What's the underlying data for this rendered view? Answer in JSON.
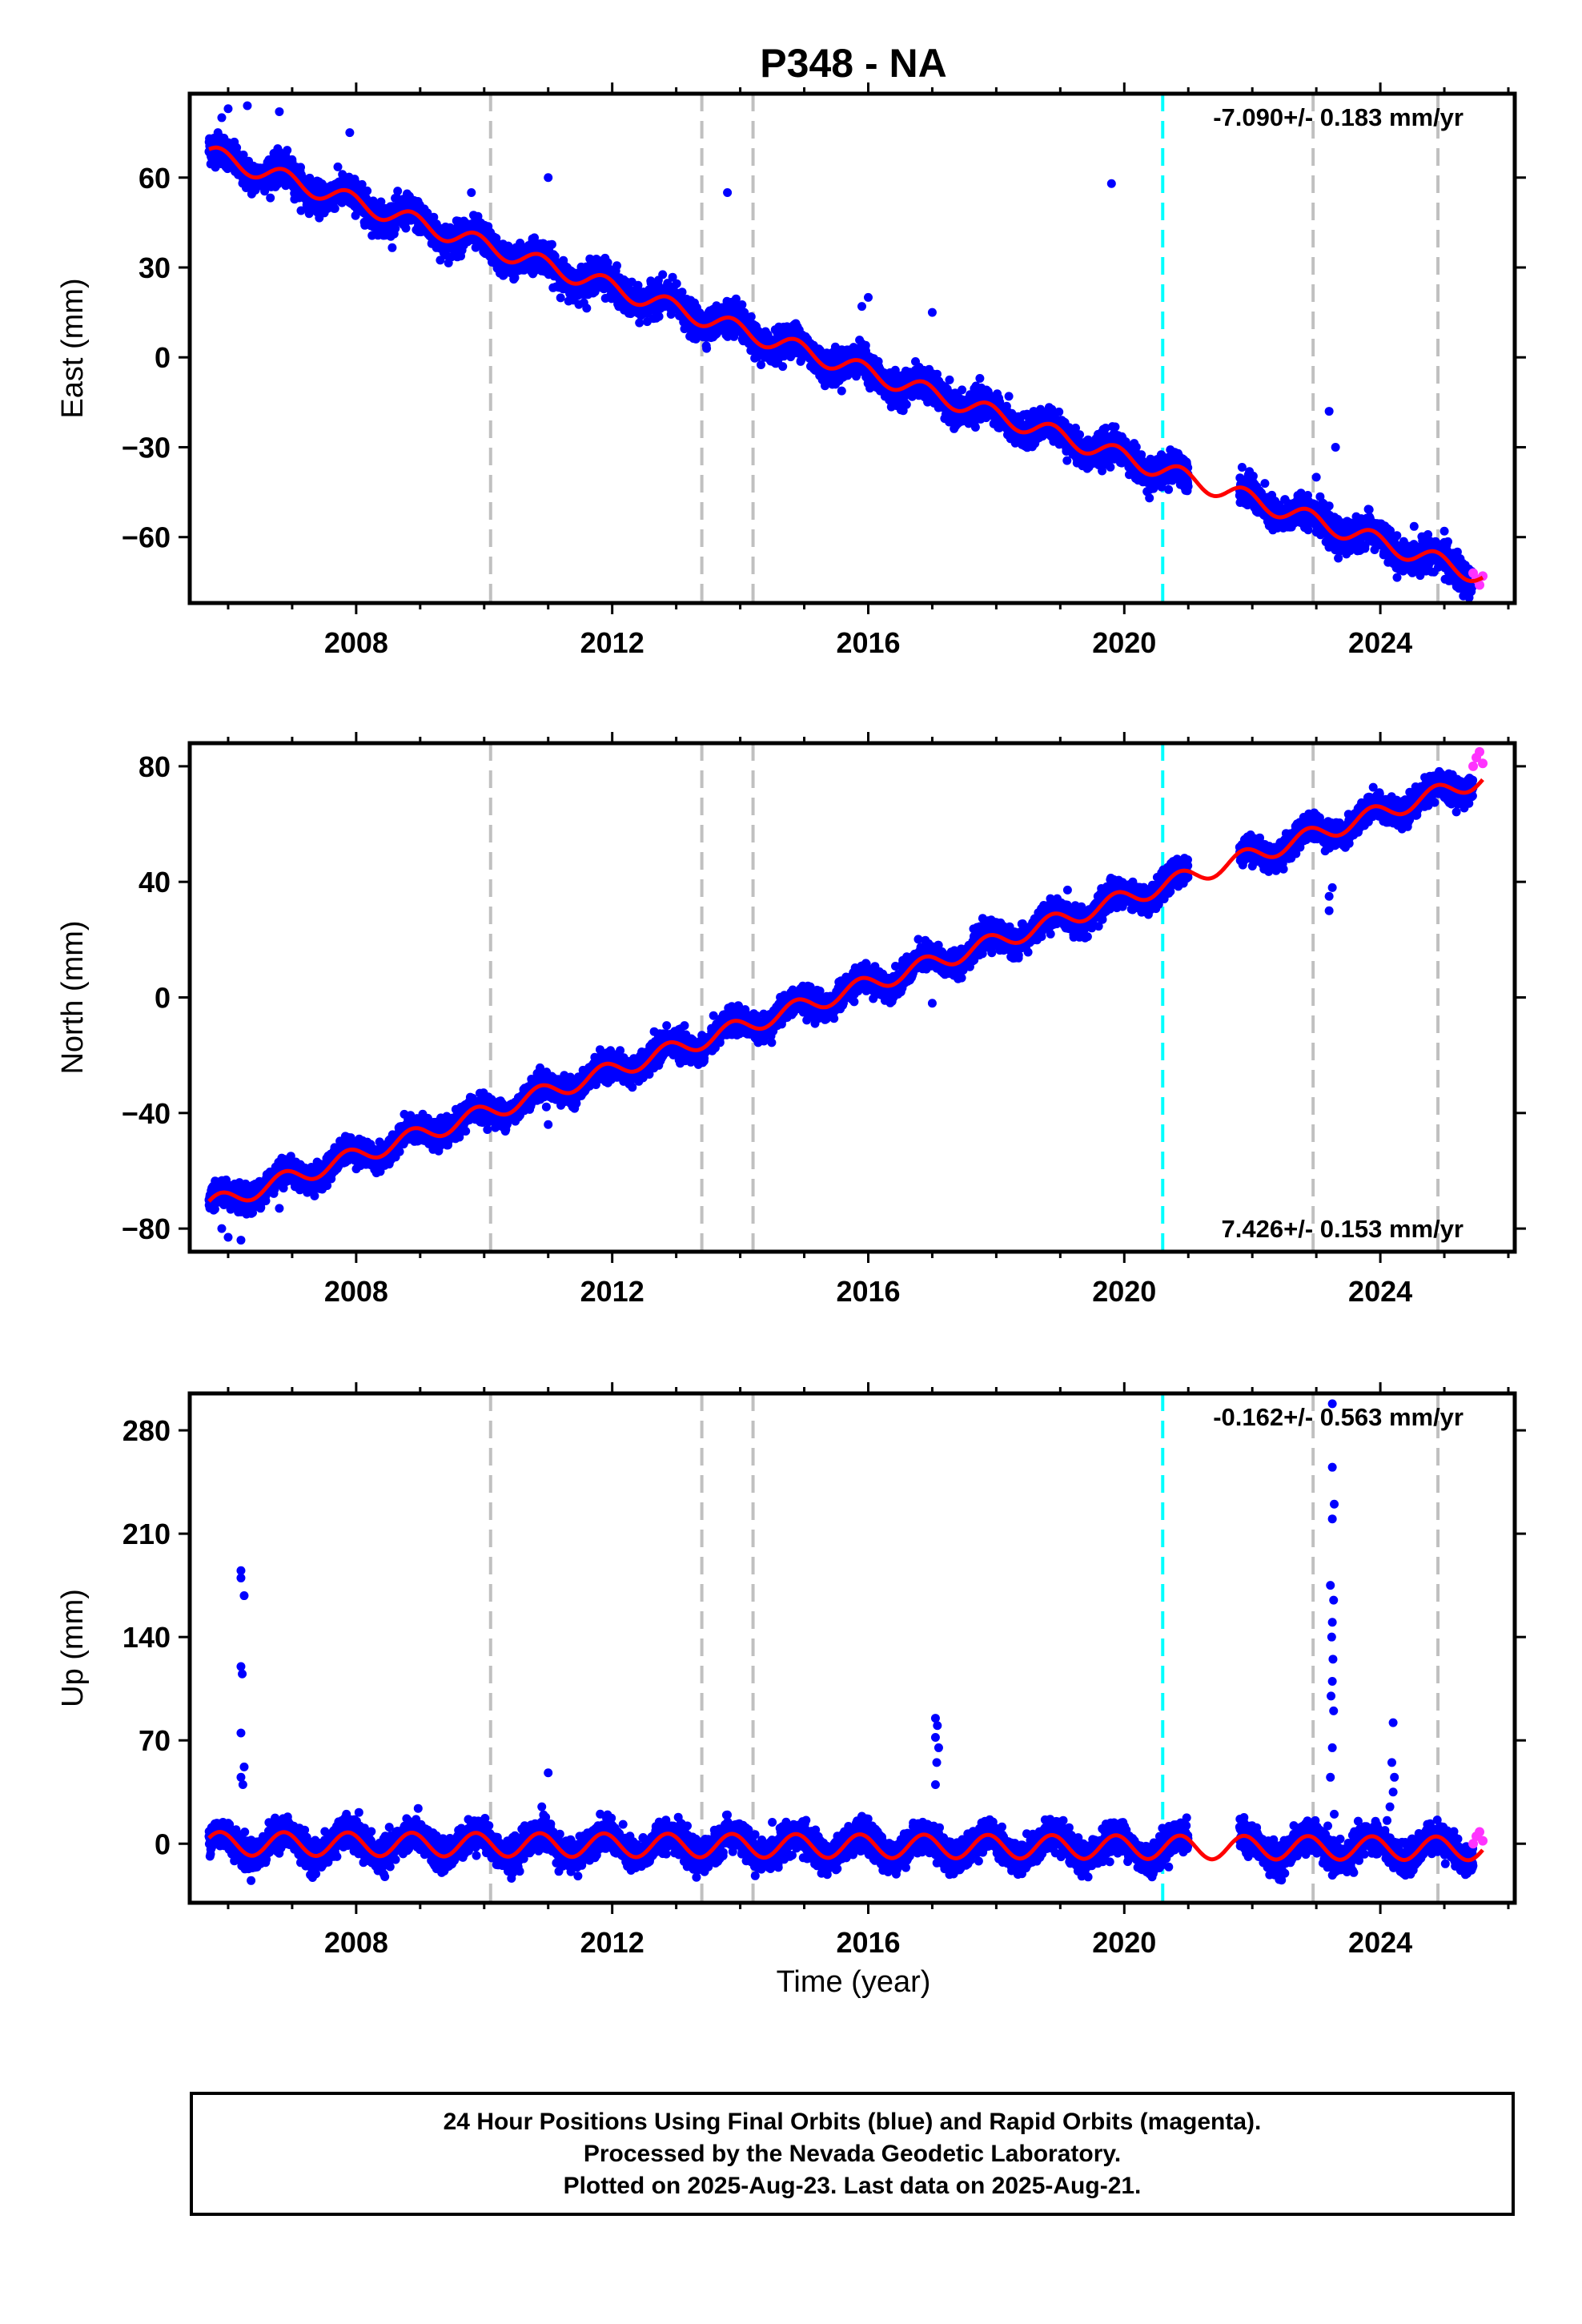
{
  "title": "P348 - NA",
  "xlabel": "Time (year)",
  "footer": {
    "line1": "24 Hour Positions Using Final Orbits (blue) and Rapid Orbits (magenta).",
    "line2": "Processed by the Nevada Geodetic Laboratory.",
    "line3": "Plotted on 2025-Aug-23. Last data on 2025-Aug-21."
  },
  "colors": {
    "final_orbits": "#0000ff",
    "rapid_orbits": "#ff33ff",
    "model_fit": "#ff0000",
    "equipment_change": "#c0c0c0",
    "earthquake": "#00ffff"
  },
  "chart_data": [
    {
      "type": "scatter",
      "panel": "east",
      "ylabel": "East (mm)",
      "rate_label": "-7.090+/- 0.183 mm/yr",
      "rate_position": "top-right",
      "xlim": [
        2005.4,
        2026.1
      ],
      "ylim": [
        -82,
        88
      ],
      "xticks": [
        2008,
        2012,
        2016,
        2020,
        2024
      ],
      "yticks": [
        -60,
        -30,
        0,
        30,
        60
      ],
      "rate_mm_per_yr": -7.09,
      "intercept_mm_at_2005_7": 68,
      "seasonal_amplitude_mm": 3,
      "noise_mm": 2.5,
      "gaps": [
        [
          2021.0,
          2021.8
        ]
      ],
      "outliers": [
        [
          2005.9,
          80
        ],
        [
          2006.0,
          83
        ],
        [
          2006.3,
          84
        ],
        [
          2006.8,
          82
        ],
        [
          2007.9,
          75
        ],
        [
          2009.8,
          55
        ],
        [
          2011.0,
          60
        ],
        [
          2013.8,
          55
        ],
        [
          2015.9,
          17
        ],
        [
          2016.0,
          20
        ],
        [
          2017.0,
          15
        ],
        [
          2019.8,
          58
        ],
        [
          2023.2,
          -18
        ],
        [
          2023.3,
          -30
        ],
        [
          2023.0,
          -40
        ],
        [
          2025.0,
          -58
        ]
      ],
      "rapid_points": [
        [
          2025.45,
          -72
        ],
        [
          2025.5,
          -74
        ],
        [
          2025.55,
          -76
        ],
        [
          2025.6,
          -73
        ]
      ],
      "vlines_equipment": [
        2010.1,
        2013.4,
        2014.2,
        2022.95,
        2024.9
      ],
      "vlines_earthquake": [
        2020.6
      ]
    },
    {
      "type": "scatter",
      "panel": "north",
      "ylabel": "North (mm)",
      "rate_label": "7.426+/- 0.153 mm/yr",
      "rate_position": "bottom-right",
      "xlim": [
        2005.4,
        2026.1
      ],
      "ylim": [
        -88,
        88
      ],
      "xticks": [
        2008,
        2012,
        2016,
        2020,
        2024
      ],
      "yticks": [
        -80,
        -40,
        0,
        40,
        80
      ],
      "rate_mm_per_yr": 7.426,
      "intercept_mm_at_2005_7": -72,
      "seasonal_amplitude_mm": 3,
      "noise_mm": 2.2,
      "gaps": [
        [
          2021.0,
          2021.8
        ]
      ],
      "outliers": [
        [
          2005.9,
          -80
        ],
        [
          2006.0,
          -83
        ],
        [
          2006.2,
          -84
        ],
        [
          2006.8,
          -73
        ],
        [
          2010.3,
          -45
        ],
        [
          2011.0,
          -44
        ],
        [
          2017.0,
          -2
        ],
        [
          2023.2,
          35
        ],
        [
          2023.2,
          30
        ],
        [
          2023.25,
          38
        ]
      ],
      "rapid_points": [
        [
          2025.45,
          80
        ],
        [
          2025.5,
          83
        ],
        [
          2025.55,
          85
        ],
        [
          2025.6,
          81
        ]
      ],
      "vlines_equipment": [
        2010.1,
        2013.4,
        2014.2,
        2022.95,
        2024.9
      ],
      "vlines_earthquake": [
        2020.6
      ]
    },
    {
      "type": "scatter",
      "panel": "up",
      "ylabel": "Up (mm)",
      "rate_label": "-0.162+/- 0.563 mm/yr",
      "rate_position": "top-right",
      "xlim": [
        2005.4,
        2026.1
      ],
      "ylim": [
        -40,
        305
      ],
      "xticks": [
        2008,
        2012,
        2016,
        2020,
        2024
      ],
      "yticks": [
        0,
        70,
        140,
        210,
        280
      ],
      "rate_mm_per_yr": -0.162,
      "intercept_mm_at_2005_7": 0,
      "seasonal_amplitude_mm": 8,
      "noise_mm": 5,
      "gaps": [
        [
          2021.0,
          2021.8
        ]
      ],
      "outliers": [
        [
          2006.2,
          185
        ],
        [
          2006.2,
          180
        ],
        [
          2006.25,
          168
        ],
        [
          2006.2,
          120
        ],
        [
          2006.22,
          115
        ],
        [
          2006.2,
          75
        ],
        [
          2006.25,
          52
        ],
        [
          2006.2,
          45
        ],
        [
          2006.23,
          40
        ],
        [
          2011.0,
          48
        ],
        [
          2010.9,
          25
        ],
        [
          2017.05,
          85
        ],
        [
          2017.08,
          80
        ],
        [
          2017.05,
          72
        ],
        [
          2017.1,
          65
        ],
        [
          2017.07,
          55
        ],
        [
          2017.05,
          40
        ],
        [
          2023.25,
          298
        ],
        [
          2023.25,
          255
        ],
        [
          2023.28,
          230
        ],
        [
          2023.25,
          220
        ],
        [
          2023.22,
          175
        ],
        [
          2023.27,
          165
        ],
        [
          2023.25,
          150
        ],
        [
          2023.24,
          140
        ],
        [
          2023.26,
          125
        ],
        [
          2023.25,
          110
        ],
        [
          2023.23,
          100
        ],
        [
          2023.27,
          90
        ],
        [
          2023.25,
          65
        ],
        [
          2023.22,
          45
        ],
        [
          2023.28,
          20
        ],
        [
          2024.2,
          82
        ],
        [
          2024.18,
          55
        ],
        [
          2024.22,
          45
        ],
        [
          2024.2,
          35
        ],
        [
          2024.15,
          25
        ]
      ],
      "rapid_points": [
        [
          2025.45,
          0
        ],
        [
          2025.5,
          5
        ],
        [
          2025.55,
          8
        ],
        [
          2025.6,
          2
        ]
      ],
      "vlines_equipment": [
        2010.1,
        2013.4,
        2014.2,
        2022.95,
        2024.9
      ],
      "vlines_earthquake": [
        2020.6
      ]
    }
  ]
}
